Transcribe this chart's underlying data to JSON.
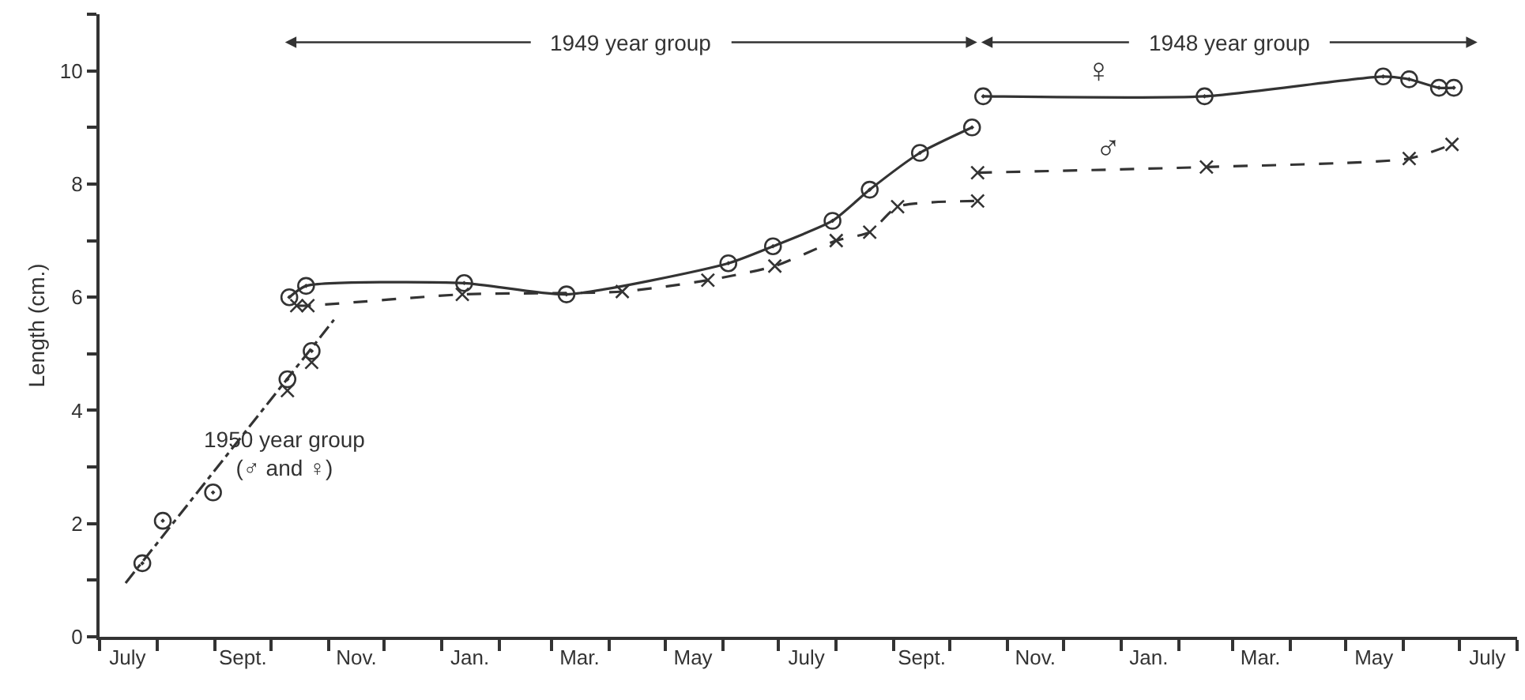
{
  "chart_data": {
    "type": "line",
    "ylabel": "Length (cm.)",
    "xlim": [
      "1950-07-01",
      "1952-08-01"
    ],
    "ylim": [
      0,
      11
    ],
    "xticks": [
      {
        "value": "1950-07-01",
        "label": null
      },
      {
        "value": "1950-07-16",
        "label": "July"
      },
      {
        "value": "1950-08-01",
        "label": null
      },
      {
        "value": "1950-09-01",
        "label": null
      },
      {
        "value": "1950-09-16",
        "label": "Sept."
      },
      {
        "value": "1950-10-01",
        "label": null
      },
      {
        "value": "1950-11-01",
        "label": null
      },
      {
        "value": "1950-11-16",
        "label": "Nov."
      },
      {
        "value": "1950-12-01",
        "label": null
      },
      {
        "value": "1951-01-01",
        "label": null
      },
      {
        "value": "1951-01-16",
        "label": "Jan."
      },
      {
        "value": "1951-02-01",
        "label": null
      },
      {
        "value": "1951-03-01",
        "label": null
      },
      {
        "value": "1951-03-16",
        "label": "Mar."
      },
      {
        "value": "1951-04-01",
        "label": null
      },
      {
        "value": "1951-05-01",
        "label": null
      },
      {
        "value": "1951-05-16",
        "label": "May"
      },
      {
        "value": "1951-06-01",
        "label": null
      },
      {
        "value": "1951-07-01",
        "label": null
      },
      {
        "value": "1951-07-16",
        "label": "July"
      },
      {
        "value": "1951-08-01",
        "label": null
      },
      {
        "value": "1951-09-01",
        "label": null
      },
      {
        "value": "1951-09-16",
        "label": "Sept."
      },
      {
        "value": "1951-10-01",
        "label": null
      },
      {
        "value": "1951-11-01",
        "label": null
      },
      {
        "value": "1951-11-16",
        "label": "Nov."
      },
      {
        "value": "1951-12-01",
        "label": null
      },
      {
        "value": "1952-01-01",
        "label": null
      },
      {
        "value": "1952-01-16",
        "label": "Jan."
      },
      {
        "value": "1952-02-01",
        "label": null
      },
      {
        "value": "1952-03-01",
        "label": null
      },
      {
        "value": "1952-03-16",
        "label": "Mar."
      },
      {
        "value": "1952-04-01",
        "label": null
      },
      {
        "value": "1952-05-01",
        "label": null
      },
      {
        "value": "1952-05-16",
        "label": "May"
      },
      {
        "value": "1952-06-01",
        "label": null
      },
      {
        "value": "1952-07-01",
        "label": null
      },
      {
        "value": "1952-07-16",
        "label": "July"
      },
      {
        "value": "1952-08-01",
        "label": null
      }
    ],
    "yticks": [
      0,
      {
        "value": 1,
        "label": null
      },
      2,
      {
        "value": 3,
        "label": null
      },
      4,
      {
        "value": 5,
        "label": null
      },
      6,
      {
        "value": 7,
        "label": null
      },
      8,
      {
        "value": 9,
        "label": null
      },
      10,
      {
        "value": 11,
        "label": null
      }
    ],
    "series": [
      {
        "type": "scatter",
        "color": "#333333",
        "marker": "circle",
        "x": [
          "1950-07-24",
          "1950-08-04",
          "1950-08-31",
          "1950-10-10",
          "1950-10-23"
        ],
        "values": [
          1.3,
          2.05,
          2.55,
          4.55,
          5.05
        ]
      },
      {
        "type": "scatter",
        "color": "#333333",
        "marker": "cross",
        "x": [
          "1950-10-10",
          "1950-10-23"
        ],
        "values": [
          4.35,
          4.85
        ]
      },
      {
        "color": "#333333",
        "line_style": "dotted",
        "x": [
          "1950-07-15",
          "1950-11-04"
        ],
        "values": [
          0.95,
          5.6
        ]
      },
      {
        "color": "#333333",
        "marker": "circle",
        "line_style": "solid",
        "x": [
          "1950-10-11",
          "1950-10-20",
          "1951-01-13",
          "1951-03-09",
          "1951-06-04",
          "1951-06-28",
          "1951-07-30",
          "1951-08-19",
          "1951-09-15",
          "1951-10-13"
        ],
        "values": [
          6.0,
          6.2,
          6.25,
          6.05,
          6.6,
          6.9,
          7.35,
          7.9,
          8.55,
          9.0
        ]
      },
      {
        "color": "#333333",
        "marker": "cross",
        "line_style": "dashed",
        "x": [
          "1950-10-15",
          "1950-10-21",
          "1951-01-12",
          "1951-04-08",
          "1951-05-24",
          "1951-06-29",
          "1951-08-01",
          "1951-08-19",
          "1951-09-03",
          "1951-10-16"
        ],
        "values": [
          5.85,
          5.85,
          6.05,
          6.1,
          6.3,
          6.55,
          7.0,
          7.15,
          7.6,
          7.7
        ]
      },
      {
        "color": "#333333",
        "marker": "circle",
        "line_style": "solid",
        "x": [
          "1951-10-19",
          "1952-02-15",
          "1952-05-21",
          "1952-06-04",
          "1952-06-20",
          "1952-06-28"
        ],
        "values": [
          9.55,
          9.55,
          9.9,
          9.85,
          9.7,
          9.7
        ]
      },
      {
        "color": "#333333",
        "marker": "cross",
        "line_style": "dashed",
        "x": [
          "1951-10-16",
          "1952-02-16",
          "1952-06-04",
          "1952-06-27"
        ],
        "values": [
          8.2,
          8.3,
          8.45,
          8.7
        ]
      }
    ],
    "annotations": [
      "1949 year group",
      "1948 year group",
      "♀",
      "♂",
      "1950 year group\n(♂ and ♀)"
    ]
  }
}
